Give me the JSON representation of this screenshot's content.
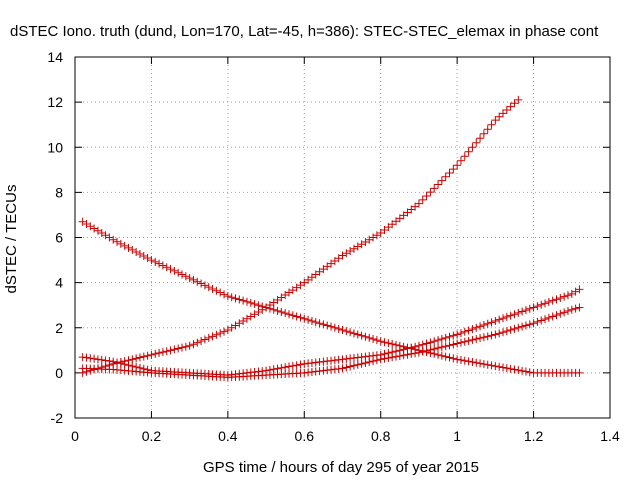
{
  "chart_data": {
    "type": "scatter",
    "title": "dSTEC Iono. truth (dund, Lon=170, Lat=-45, h=386): STEC-STEC_elemax in phase cont",
    "xlabel": "GPS time / hours of day 295 of year 2015",
    "ylabel": "dSTEC  / TECUs",
    "xlim": [
      0,
      1.4
    ],
    "ylim": [
      -2,
      14
    ],
    "x_ticks": [
      0,
      0.2,
      0.4,
      0.6,
      0.8,
      1,
      1.2,
      1.4
    ],
    "x_tick_labels": [
      "0",
      "0.2",
      "0.4",
      "0.6",
      "0.8",
      "1",
      "1.2",
      "1.4"
    ],
    "y_ticks": [
      -2,
      0,
      2,
      4,
      6,
      8,
      10,
      12,
      14
    ],
    "y_tick_labels": [
      "-2",
      "0",
      "2",
      "4",
      "6",
      "8",
      "10",
      "12",
      "14"
    ],
    "grid": true,
    "marker": "+",
    "color": "#cc0000",
    "series": [
      {
        "x": [
          0.02,
          0.1,
          0.2,
          0.3,
          0.4,
          0.5,
          0.6,
          0.7,
          0.8,
          0.9,
          1.0,
          1.1,
          1.16
        ],
        "y": [
          0.0,
          0.4,
          0.8,
          1.2,
          1.9,
          2.9,
          4.0,
          5.2,
          6.2,
          7.5,
          9.2,
          11.2,
          12.1
        ]
      },
      {
        "x": [
          0.02,
          0.1,
          0.2,
          0.3,
          0.4,
          0.5,
          0.6,
          0.7,
          0.8,
          0.9,
          1.0,
          1.1,
          1.2,
          1.3,
          1.32
        ],
        "y": [
          6.7,
          5.9,
          5.0,
          4.2,
          3.4,
          2.9,
          2.4,
          1.9,
          1.4,
          1.0,
          0.6,
          0.3,
          0.0,
          0.0,
          0.0
        ]
      },
      {
        "x": [
          0.02,
          0.1,
          0.2,
          0.3,
          0.4,
          0.5,
          0.6,
          0.7,
          0.8,
          0.9,
          1.0,
          1.1,
          1.2,
          1.3,
          1.32
        ],
        "y": [
          0.7,
          0.5,
          0.1,
          0.0,
          -0.1,
          0.1,
          0.4,
          0.6,
          0.8,
          1.2,
          1.7,
          2.3,
          2.9,
          3.5,
          3.7
        ]
      },
      {
        "x": [
          0.02,
          0.1,
          0.2,
          0.3,
          0.4,
          0.5,
          0.6,
          0.7,
          0.8,
          0.9,
          1.0,
          1.1,
          1.2,
          1.3,
          1.32
        ],
        "y": [
          0.2,
          0.15,
          0.0,
          -0.1,
          -0.2,
          -0.1,
          0.0,
          0.2,
          0.6,
          0.9,
          1.3,
          1.7,
          2.2,
          2.8,
          2.9
        ]
      }
    ]
  }
}
